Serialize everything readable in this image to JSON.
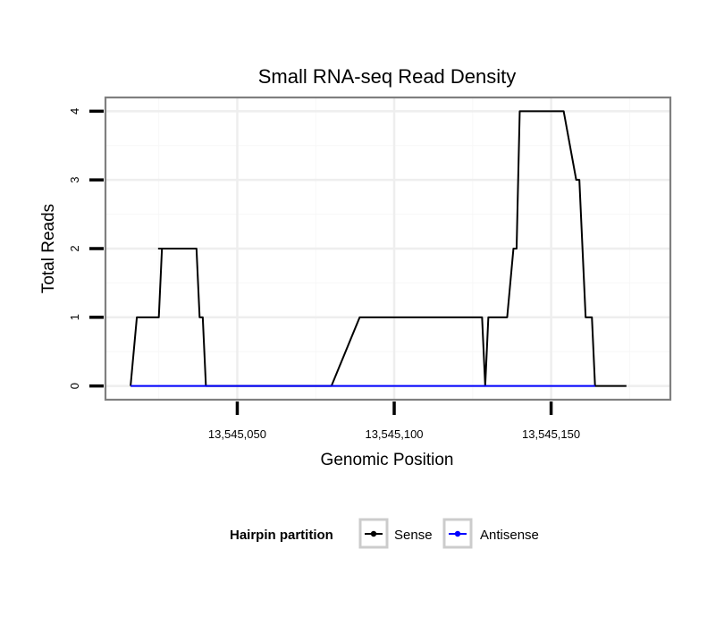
{
  "chart_data": {
    "type": "line",
    "title": "Small RNA-seq Read Density",
    "xlabel": "Genomic Position",
    "ylabel": "Total Reads",
    "xlim": [
      13545008,
      13545188
    ],
    "ylim": [
      -0.2,
      4.2
    ],
    "x_ticks": [
      13545050,
      13545100,
      13545150
    ],
    "x_tick_labels": [
      "13,545,050",
      "13,545,100",
      "13,545,150"
    ],
    "x_grid_minor": [
      13545025,
      13545075,
      13545125,
      13545175
    ],
    "y_ticks": [
      0,
      1,
      2,
      3,
      4
    ],
    "y_tick_labels": [
      "0",
      "1",
      "2",
      "3",
      "4"
    ],
    "y_grid_minor": [
      0.5,
      1.5,
      2.5,
      3.5
    ],
    "grid": true,
    "legend": {
      "title": "Hairpin partition",
      "position": "bottom"
    },
    "series": [
      {
        "name": "Sense",
        "color": "#000000",
        "x": [
          13545016,
          13545018,
          13545025,
          13545026,
          13545025,
          13545026,
          13545033,
          13545034,
          13545037,
          13545038,
          13545039,
          13545040,
          13545042,
          13545045,
          13545080,
          13545089,
          13545090,
          13545109,
          13545128,
          13545129,
          13545130,
          13545131,
          13545136,
          13545138,
          13545139,
          13545140,
          13545142,
          13545154,
          13545158,
          13545159,
          13545161,
          13545163,
          13545164,
          13545174
        ],
        "values": [
          0,
          1,
          1,
          2,
          2,
          2,
          2,
          2,
          2,
          1,
          1,
          0,
          0,
          0,
          0,
          1,
          1,
          1,
          1,
          0,
          1,
          1,
          1,
          2,
          2,
          4,
          4,
          4,
          3,
          3,
          1,
          1,
          0,
          0
        ]
      },
      {
        "name": "Antisense",
        "color": "#0000ff",
        "x": [
          13545016,
          13545164
        ],
        "values": [
          0,
          0
        ]
      }
    ]
  }
}
